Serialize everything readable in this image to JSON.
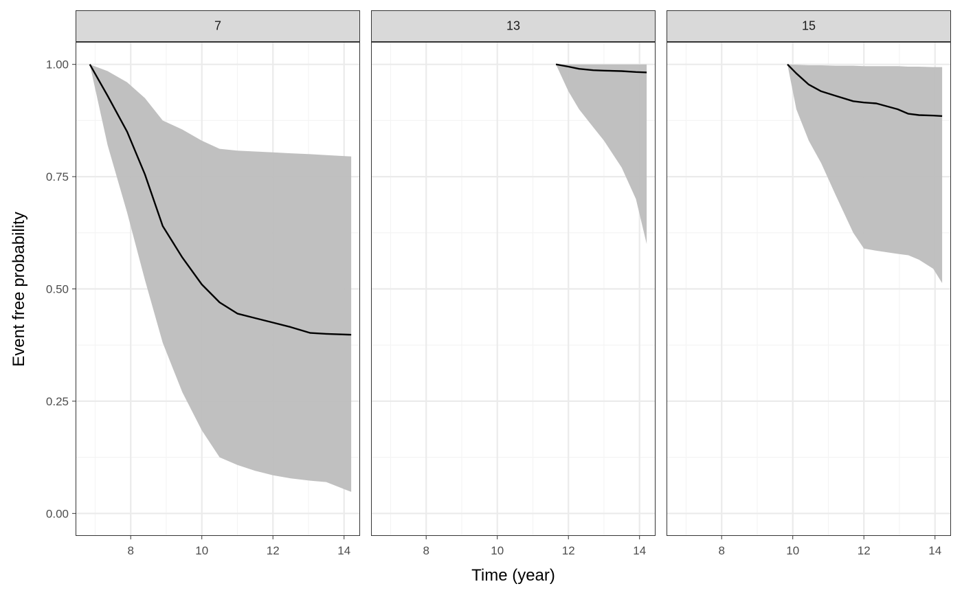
{
  "chart_data": {
    "type": "line",
    "xlabel": "Time (year)",
    "ylabel": "Event free probability",
    "xlim": [
      6.45,
      14.45
    ],
    "ylim": [
      -0.05,
      1.05
    ],
    "x_ticks": [
      8,
      10,
      12,
      14
    ],
    "y_ticks": [
      0.0,
      0.25,
      0.5,
      0.75,
      1.0
    ],
    "y_tick_labels": [
      "0.00",
      "0.25",
      "0.50",
      "0.75",
      "1.00"
    ],
    "grid": true,
    "theme": "bw",
    "colors": {
      "line": "#000000",
      "ribbon": "#bdbdbd",
      "strip_fill": "#d9d9d9",
      "grid_major": "#ebebeb",
      "grid_minor": "#f4f4f4",
      "border": "#333333"
    },
    "panels": [
      {
        "label": "7",
        "x": [
          6.85,
          7.35,
          7.9,
          8.4,
          8.9,
          9.45,
          10.0,
          10.5,
          11.0,
          11.5,
          12.0,
          12.5,
          13.05,
          13.5,
          14.2
        ],
        "y": [
          1.0,
          0.93,
          0.85,
          0.755,
          0.64,
          0.57,
          0.51,
          0.47,
          0.445,
          0.435,
          0.425,
          0.415,
          0.402,
          0.4,
          0.398
        ],
        "lower": [
          1.0,
          0.82,
          0.67,
          0.52,
          0.38,
          0.27,
          0.185,
          0.125,
          0.108,
          0.095,
          0.085,
          0.078,
          0.073,
          0.07,
          0.048
        ],
        "upper": [
          1.0,
          0.985,
          0.96,
          0.925,
          0.875,
          0.855,
          0.83,
          0.812,
          0.808,
          0.806,
          0.804,
          0.802,
          0.8,
          0.798,
          0.795
        ]
      },
      {
        "label": "13",
        "x": [
          11.65,
          12.0,
          12.3,
          12.7,
          13.0,
          13.5,
          13.9,
          14.2
        ],
        "y": [
          1.0,
          0.995,
          0.99,
          0.987,
          0.986,
          0.985,
          0.983,
          0.982
        ],
        "lower": [
          1.0,
          0.94,
          0.9,
          0.86,
          0.83,
          0.77,
          0.7,
          0.6
        ],
        "upper": [
          1.0,
          1.0,
          1.0,
          1.0,
          1.0,
          1.0,
          1.0,
          1.0
        ]
      },
      {
        "label": "15",
        "x": [
          9.85,
          10.1,
          10.45,
          10.8,
          11.2,
          11.7,
          12.0,
          12.35,
          12.95,
          13.25,
          13.55,
          13.95,
          14.2
        ],
        "y": [
          1.0,
          0.98,
          0.955,
          0.94,
          0.93,
          0.918,
          0.915,
          0.913,
          0.9,
          0.89,
          0.887,
          0.886,
          0.885
        ],
        "lower": [
          1.0,
          0.9,
          0.83,
          0.78,
          0.71,
          0.625,
          0.59,
          0.585,
          0.578,
          0.575,
          0.565,
          0.545,
          0.513
        ],
        "upper": [
          1.0,
          0.999,
          0.998,
          0.998,
          0.997,
          0.997,
          0.996,
          0.996,
          0.996,
          0.995,
          0.995,
          0.994,
          0.994
        ]
      }
    ]
  }
}
